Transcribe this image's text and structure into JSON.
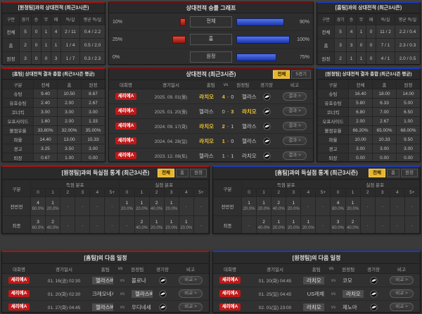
{
  "misc": {
    "dash": "-",
    "score_sep": "-",
    "vs": "vs"
  },
  "colors": {
    "accent_red": "#c11818",
    "accent_blue": "#1c3bb8",
    "accent_yellow": "#f0c330"
  },
  "h2h_vs_away": {
    "title": "[원정팀]과의 상대전적 (최근3시즌)",
    "columns": [
      "구분",
      "경기",
      "승",
      "무",
      "패",
      "득/실",
      "평균 득/실"
    ],
    "rows": [
      {
        "label": "전체",
        "cells": [
          "5",
          "0",
          "1",
          "4",
          "2 / 11",
          "0.4 / 2.2"
        ]
      },
      {
        "label": "홈",
        "cells": [
          "2",
          "0",
          "1",
          "1",
          "1 / 4",
          "0.5 / 2.0"
        ]
      },
      {
        "label": "원정",
        "cells": [
          "3",
          "0",
          "0",
          "3",
          "1 / 7",
          "0.3 / 2.3"
        ]
      }
    ]
  },
  "winrate_graph": {
    "title": "상대전적 승률 그래프",
    "rows": [
      {
        "label": "전체",
        "left_label": "10%",
        "left_value": 10,
        "right_label": "90%",
        "right_value": 90
      },
      {
        "label": "홈",
        "left_label": "25%",
        "left_value": 25,
        "right_label": "100%",
        "right_value": 100
      },
      {
        "label": "원정",
        "left_label": "0%",
        "left_value": 0,
        "right_label": "75%",
        "right_value": 75
      }
    ]
  },
  "h2h_vs_home": {
    "title": "[홈팀]과의 상대전적 (최근3시즌)",
    "columns": [
      "구분",
      "경기",
      "승",
      "무",
      "패",
      "득/실",
      "평균 득/실"
    ],
    "rows": [
      {
        "label": "전체",
        "cells": [
          "5",
          "4",
          "1",
          "0",
          "11 / 2",
          "2.2 / 0.4"
        ]
      },
      {
        "label": "홈",
        "cells": [
          "3",
          "3",
          "0",
          "0",
          "7 / 1",
          "2.3 / 0.3"
        ]
      },
      {
        "label": "원정",
        "cells": [
          "2",
          "1",
          "1",
          "0",
          "4 / 1",
          "2.0 / 0.5"
        ]
      }
    ]
  },
  "totals_home": {
    "title": "[홈팀] 상대전적 결과 총합 (최근3시즌 평균)",
    "columns": [
      "구분",
      "전체",
      "홈",
      "원정"
    ],
    "rows": [
      {
        "label": "슈팅",
        "cells": [
          "9.40",
          "10.50",
          "8.67"
        ]
      },
      {
        "label": "유효슈팅",
        "cells": [
          "2.40",
          "2.00",
          "2.67"
        ]
      },
      {
        "label": "코너킥",
        "cells": [
          "3.00",
          "3.00",
          "3.00"
        ]
      },
      {
        "label": "오프사이드",
        "cells": [
          "1.60",
          "2.00",
          "1.33"
        ]
      },
      {
        "label": "볼점유율",
        "cells": [
          "33.80%",
          "32.00%",
          "35.00%"
        ]
      },
      {
        "label": "파울",
        "cells": [
          "14.40",
          "13.00",
          "15.33"
        ]
      },
      {
        "label": "경고",
        "cells": [
          "3.25",
          "3.50",
          "3.00"
        ]
      },
      {
        "label": "퇴장",
        "cells": [
          "0.67",
          "1.00",
          "0.00"
        ]
      }
    ]
  },
  "totals_away": {
    "title": "[원정팀] 상대전적 결과 총합 (최근3시즌 평균)",
    "columns": [
      "구분",
      "전체",
      "홈",
      "원정"
    ],
    "rows": [
      {
        "label": "슈팅",
        "cells": [
          "16.40",
          "18.00",
          "14.00"
        ]
      },
      {
        "label": "유효슈팅",
        "cells": [
          "5.80",
          "6.33",
          "5.00"
        ]
      },
      {
        "label": "코너킥",
        "cells": [
          "6.80",
          "7.00",
          "6.50"
        ]
      },
      {
        "label": "오프사이드",
        "cells": [
          "2.00",
          "2.67",
          "1.00"
        ]
      },
      {
        "label": "볼점유율",
        "cells": [
          "66.20%",
          "65.00%",
          "68.00%"
        ]
      },
      {
        "label": "파울",
        "cells": [
          "10.00",
          "10.33",
          "9.50"
        ]
      },
      {
        "label": "경고",
        "cells": [
          "3.00",
          "3.00",
          "3.00"
        ]
      },
      {
        "label": "퇴장",
        "cells": [
          "0.00",
          "0.00",
          "0.00"
        ]
      }
    ]
  },
  "matches": {
    "title": "상대전적 (최근3시즌)",
    "tabs": [
      {
        "label": "전체",
        "active": true
      },
      {
        "label": "5경기",
        "active": false
      }
    ],
    "columns": {
      "league": "대회명",
      "date": "경기일시",
      "home": "홈팀",
      "vs": "vs",
      "away": "원정팀",
      "stadium": "경기장",
      "note": "비고"
    },
    "result_label": "결과 >",
    "rows": [
      {
        "league": "세리에A",
        "date": "2025. 09. 01(월)",
        "home": "라치오",
        "home_red": false,
        "score_home": "4",
        "score_away": "0",
        "away": "헬라스베로나",
        "winner": "home"
      },
      {
        "league": "세리에A",
        "date": "2025. 01. 20(월)",
        "home": "헬라스베로나",
        "home_red": true,
        "score_home": "0",
        "score_away": "3",
        "away": "라치오",
        "winner": "away"
      },
      {
        "league": "세리에A",
        "date": "2024. 09. 17(화)",
        "home": "라치오",
        "home_red": false,
        "score_home": "2",
        "score_away": "1",
        "away": "헬라스베로나",
        "winner": "home"
      },
      {
        "league": "세리에A",
        "date": "2024. 04. 28(일)",
        "home": "라치오",
        "home_red": false,
        "score_home": "1",
        "score_away": "0",
        "away": "헬라스베로나",
        "winner": "home"
      },
      {
        "league": "세리에A",
        "date": "2023. 12. 09(토)",
        "home": "헬라스베로나",
        "home_red": true,
        "score_home": "1",
        "score_away": "1",
        "away": "라치오",
        "winner": "draw"
      }
    ]
  },
  "goals_home": {
    "title": "[원정팀]과의 득실점 통계 (최근3시즌)",
    "tabs": [
      {
        "label": "전체",
        "active": true
      },
      {
        "label": "홈",
        "active": false
      },
      {
        "label": "원정",
        "active": false
      }
    ],
    "col_label": "구분",
    "scored_label": "득점 분포",
    "conceded_label": "실점 분포",
    "bins": [
      "0",
      "1",
      "2",
      "3",
      "4",
      "5+"
    ],
    "rows": [
      {
        "label": "전반전",
        "scored": [
          {
            "n": "4",
            "p": "80.0%"
          },
          {
            "n": "1",
            "p": "20.0%"
          },
          null,
          null,
          null,
          null
        ],
        "conceded": [
          {
            "n": "1",
            "p": "20.0%"
          },
          {
            "n": "1",
            "p": "20.0%"
          },
          {
            "n": "2",
            "p": "40.0%"
          },
          {
            "n": "1",
            "p": "20.0%"
          },
          null,
          null
        ]
      },
      {
        "label": "최종",
        "scored": [
          {
            "n": "3",
            "p": "60.0%"
          },
          {
            "n": "2",
            "p": "40.0%"
          },
          null,
          null,
          null,
          null
        ],
        "conceded": [
          null,
          {
            "n": "2",
            "p": "40.0%"
          },
          {
            "n": "1",
            "p": "20.0%"
          },
          {
            "n": "1",
            "p": "20.0%"
          },
          {
            "n": "1",
            "p": "20.0%"
          },
          null
        ]
      }
    ]
  },
  "goals_away": {
    "title": "[홈팀]과의 득실점 통계 (최근3시즌)",
    "tabs": [
      {
        "label": "전체",
        "active": true
      },
      {
        "label": "홈",
        "active": false
      },
      {
        "label": "원정",
        "active": false
      }
    ],
    "col_label": "구분",
    "scored_label": "득점 분포",
    "conceded_label": "실점 분포",
    "bins": [
      "0",
      "1",
      "2",
      "3",
      "4",
      "5+"
    ],
    "rows": [
      {
        "label": "전반전",
        "scored": [
          {
            "n": "1",
            "p": "20.0%"
          },
          {
            "n": "1",
            "p": "20.0%"
          },
          {
            "n": "2",
            "p": "40.0%"
          },
          {
            "n": "1",
            "p": "20.0%"
          },
          null,
          null
        ],
        "conceded": [
          {
            "n": "4",
            "p": "80.0%"
          },
          {
            "n": "1",
            "p": "20.0%"
          },
          null,
          null,
          null,
          null
        ]
      },
      {
        "label": "최종",
        "scored": [
          null,
          {
            "n": "2",
            "p": "40.0%"
          },
          {
            "n": "1",
            "p": "20.0%"
          },
          {
            "n": "1",
            "p": "20.0%"
          },
          {
            "n": "1",
            "p": "20.0%"
          },
          null
        ],
        "conceded": [
          {
            "n": "3",
            "p": "60.0%"
          },
          {
            "n": "2",
            "p": "40.0%"
          },
          null,
          null,
          null,
          null
        ]
      }
    ]
  },
  "schedule_home": {
    "title": "[홈팀]의 다음 일정",
    "columns": {
      "league": "대회명",
      "date": "경기일시",
      "home": "홈팀",
      "vs": "vs",
      "away": "원정팀",
      "stadium": "경기장",
      "note": "비고"
    },
    "compare_label": "비교 >",
    "rows": [
      {
        "league": "세리에A",
        "date": "01. 16(금) 02:30",
        "home": "헬라스베로나",
        "away": "볼로냐",
        "highlight": "home"
      },
      {
        "league": "세리에A",
        "date": "01. 20(화) 02:30",
        "home": "크레모네세",
        "away": "헬라스베로나",
        "highlight": "away"
      },
      {
        "league": "세리에A",
        "date": "01. 27(화) 04:45",
        "home": "헬라스베로나",
        "away": "우디네세",
        "highlight": "home"
      }
    ]
  },
  "schedule_away": {
    "title": "[원정팀]의 다음 일정",
    "columns": {
      "league": "대회명",
      "date": "경기일시",
      "home": "홈팀",
      "vs": "vs",
      "away": "원정팀",
      "stadium": "경기장",
      "note": "비고"
    },
    "compare_label": "비교 >",
    "rows": [
      {
        "league": "세리에A",
        "date": "01. 20(화) 04:45",
        "home": "라치오",
        "away": "코모",
        "highlight": "home"
      },
      {
        "league": "세리에A",
        "date": "01. 25(일) 04:45",
        "home": "US레체",
        "away": "라치오",
        "highlight": "away"
      },
      {
        "league": "세리에A",
        "date": "02. 01(일) 23:00",
        "home": "라치오",
        "away": "제노아",
        "highlight": "home"
      }
    ]
  }
}
